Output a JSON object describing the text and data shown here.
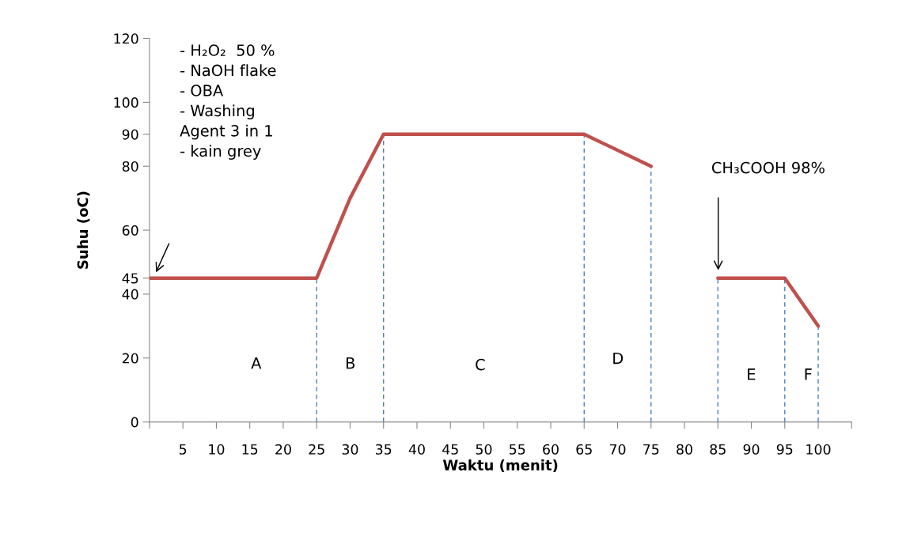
{
  "chart_data": {
    "type": "line",
    "xlabel": "Waktu (menit)",
    "ylabel": "Suhu (oC)",
    "x": [
      0,
      25,
      30,
      35,
      65,
      75,
      80,
      85,
      95,
      100
    ],
    "series": [
      {
        "color": "#c0504d",
        "values": [
          45,
          45,
          70,
          90,
          90,
          80,
          null,
          45,
          45,
          30
        ]
      }
    ],
    "xlim": [
      0,
      105
    ],
    "xticks": [
      {
        "value": 0,
        "label": null
      },
      5,
      10,
      15,
      20,
      25,
      30,
      35,
      40,
      45,
      50,
      55,
      60,
      65,
      70,
      75,
      80,
      85,
      90,
      95,
      100,
      {
        "value": 105,
        "label": null
      }
    ],
    "ylim": [
      0,
      120
    ],
    "yticks": [
      0,
      20,
      40,
      45,
      60,
      80,
      90,
      100,
      120
    ],
    "ref_lines": [
      {
        "axis": "x",
        "value": 25,
        "color": "#4f81bd",
        "line_style": "dashed"
      },
      {
        "axis": "x",
        "value": 35,
        "color": "#4f81bd",
        "line_style": "dashed"
      },
      {
        "axis": "x",
        "value": 65,
        "color": "#4f81bd",
        "line_style": "dashed"
      },
      {
        "axis": "x",
        "value": 75,
        "color": "#4f81bd",
        "line_style": "dashed"
      },
      {
        "axis": "x",
        "value": 85,
        "color": "#4f81bd",
        "line_style": "dashed"
      },
      {
        "axis": "x",
        "value": 95,
        "color": "#4f81bd",
        "line_style": "dashed"
      },
      {
        "axis": "x",
        "value": 100,
        "color": "#4f81bd",
        "line_style": "dashed"
      }
    ],
    "annotations": [
      "- H₂O₂  50 %\n- NaOH flake\n- OBA\n- Washing\nAgent 3 in 1\n- kain grey",
      "CH₃COOH 98%",
      "A",
      "B",
      "C",
      "D",
      "E",
      "F"
    ],
    "grid": false,
    "legend": false,
    "marker": "none",
    "line_style": "solid"
  }
}
